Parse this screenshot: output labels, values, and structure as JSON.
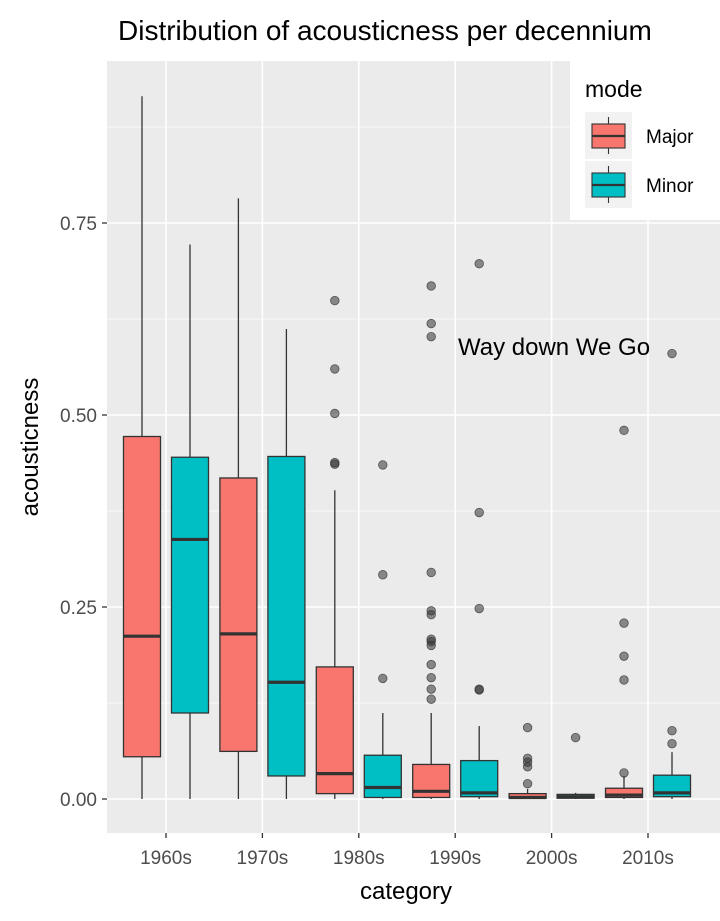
{
  "chart_data": {
    "type": "boxplot",
    "title": "Distribution of acousticness per decennium",
    "xlabel": "category",
    "ylabel": "acousticness",
    "categories": [
      "1960s",
      "1970s",
      "1980s",
      "1990s",
      "2000s",
      "2010s"
    ],
    "ylim": [
      -0.045,
      0.955
    ],
    "yticks": [
      0.0,
      0.25,
      0.5,
      0.75
    ],
    "ytick_labels": [
      "0.00",
      "0.25",
      "0.50",
      "0.75"
    ],
    "grid": true,
    "legend": {
      "title": "mode",
      "position": "top-right",
      "entries": [
        "Major",
        "Minor"
      ]
    },
    "annotation": {
      "text": "Way down We Go",
      "x": "1990s",
      "y": 0.59
    },
    "colors": {
      "Major": "#F8766D",
      "Minor": "#00BFC4",
      "panel": "#EBEBEB",
      "grid": "#FFFFFF"
    },
    "series": [
      {
        "name": "Major",
        "boxes": [
          {
            "category": "1960s",
            "min": 0.0,
            "q1": 0.055,
            "median": 0.212,
            "q3": 0.472,
            "max": 0.915,
            "outliers": []
          },
          {
            "category": "1970s",
            "min": 0.0,
            "q1": 0.062,
            "median": 0.215,
            "q3": 0.418,
            "max": 0.782,
            "outliers": []
          },
          {
            "category": "1980s",
            "min": 0.0,
            "q1": 0.007,
            "median": 0.033,
            "q3": 0.172,
            "max": 0.402,
            "outliers": [
              0.436,
              0.438,
              0.502,
              0.56,
              0.649
            ]
          },
          {
            "category": "1990s",
            "min": 0.0,
            "q1": 0.002,
            "median": 0.01,
            "q3": 0.045,
            "max": 0.112,
            "outliers": [
              0.13,
              0.143,
              0.158,
              0.175,
              0.2,
              0.205,
              0.208,
              0.24,
              0.245,
              0.295,
              0.602,
              0.619,
              0.668
            ]
          },
          {
            "category": "2000s",
            "min": 0.0,
            "q1": 0.001,
            "median": 0.002,
            "q3": 0.007,
            "max": 0.013,
            "outliers": [
              0.02,
              0.042,
              0.048,
              0.053,
              0.093
            ]
          },
          {
            "category": "2010s",
            "min": 0.0,
            "q1": 0.002,
            "median": 0.005,
            "q3": 0.014,
            "max": 0.03,
            "outliers": [
              0.034,
              0.155,
              0.186,
              0.229,
              0.48
            ]
          }
        ]
      },
      {
        "name": "Minor",
        "boxes": [
          {
            "category": "1960s",
            "min": 0.0,
            "q1": 0.112,
            "median": 0.338,
            "q3": 0.445,
            "max": 0.722,
            "outliers": []
          },
          {
            "category": "1970s",
            "min": 0.0,
            "q1": 0.03,
            "median": 0.152,
            "q3": 0.446,
            "max": 0.612,
            "outliers": []
          },
          {
            "category": "1980s",
            "min": 0.0,
            "q1": 0.002,
            "median": 0.015,
            "q3": 0.057,
            "max": 0.112,
            "outliers": [
              0.157,
              0.292,
              0.435
            ]
          },
          {
            "category": "1990s",
            "min": 0.0,
            "q1": 0.003,
            "median": 0.008,
            "q3": 0.05,
            "max": 0.095,
            "outliers": [
              0.142,
              0.143,
              0.248,
              0.373,
              0.697
            ]
          },
          {
            "category": "2000s",
            "min": 0.0,
            "q1": 0.001,
            "median": 0.003,
            "q3": 0.006,
            "max": 0.008,
            "outliers": [
              0.08
            ]
          },
          {
            "category": "2010s",
            "min": 0.0,
            "q1": 0.003,
            "median": 0.008,
            "q3": 0.031,
            "max": 0.061,
            "outliers": [
              0.072,
              0.089,
              0.58
            ]
          }
        ]
      }
    ]
  }
}
